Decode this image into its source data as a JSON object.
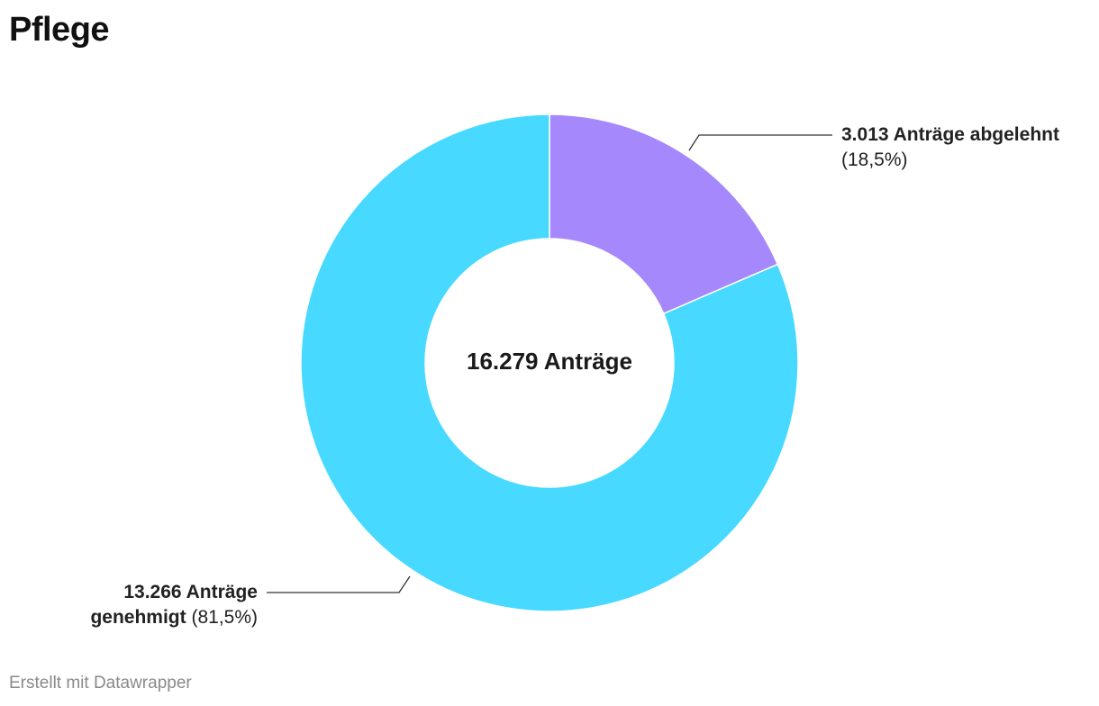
{
  "title": "Pflege",
  "footer": "Erstellt mit Datawrapper",
  "chart_data": {
    "type": "pie",
    "variant": "donut",
    "total": 16279,
    "center_label": "16.279 Anträge",
    "slices": [
      {
        "key": "rejected",
        "value": 3013,
        "percent": 18.5,
        "label_main": "3.013 Anträge abgelehnt",
        "label_pct": "(18,5%)",
        "color": "#a688fd"
      },
      {
        "key": "approved",
        "value": 13266,
        "percent": 81.5,
        "label_main": "13.266 Anträge genehmigt",
        "label_pct": "(81,5%)",
        "color": "#47d9ff"
      }
    ]
  },
  "labels": {
    "rejected_count": "3.013 Anträge abgelehnt",
    "rejected_pct": "(18,5%)",
    "approved_count_line1": "13.266 Anträge",
    "approved_count_line2": "genehmigt",
    "approved_pct": "(81,5%)"
  }
}
